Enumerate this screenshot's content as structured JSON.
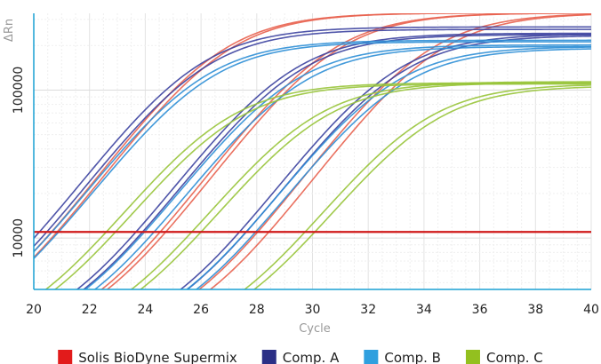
{
  "chart_data": {
    "type": "line",
    "xlabel": "Cycle",
    "ylabel": "ΔRn",
    "xlim": [
      20,
      40
    ],
    "x_ticks": [
      20,
      22,
      24,
      26,
      28,
      30,
      32,
      34,
      36,
      38,
      40
    ],
    "y_scale": "log",
    "ylim": [
      4500,
      330000
    ],
    "y_ticks": [
      10000,
      100000
    ],
    "y_tick_labels": [
      "10000",
      "100000"
    ],
    "grid": true,
    "legend_position": "bottom",
    "threshold": {
      "value": 11000,
      "color": "#d01919"
    },
    "curve_model": {
      "base": 2000
    },
    "series": [
      {
        "name": "Solis BioDyne Supermix",
        "color": "#e21b1b",
        "line_color": "#e8624f",
        "curves": [
          {
            "plateau": 330000,
            "midpoint": 26.4,
            "steepness": 0.62
          },
          {
            "plateau": 330000,
            "midpoint": 26.6,
            "steepness": 0.62
          },
          {
            "plateau": 330000,
            "midpoint": 30.3,
            "steepness": 0.62
          },
          {
            "plateau": 330000,
            "midpoint": 30.5,
            "steepness": 0.62
          },
          {
            "plateau": 330000,
            "midpoint": 33.8,
            "steepness": 0.62
          },
          {
            "plateau": 330000,
            "midpoint": 34.2,
            "steepness": 0.62
          }
        ]
      },
      {
        "name": "Comp. A",
        "color": "#2b2f86",
        "line_color": "#3c43a0",
        "curves": [
          {
            "plateau": 265000,
            "midpoint": 25.6,
            "steepness": 0.62
          },
          {
            "plateau": 255000,
            "midpoint": 25.8,
            "steepness": 0.62
          },
          {
            "plateau": 240000,
            "midpoint": 28.9,
            "steepness": 0.62
          },
          {
            "plateau": 235000,
            "midpoint": 29.1,
            "steepness": 0.62
          },
          {
            "plateau": 238000,
            "midpoint": 32.6,
            "steepness": 0.62
          },
          {
            "plateau": 232000,
            "midpoint": 32.8,
            "steepness": 0.62
          }
        ]
      },
      {
        "name": "Comp. B",
        "color": "#2fa0df",
        "line_color": "#2f8fd6",
        "curves": [
          {
            "plateau": 215000,
            "midpoint": 25.7,
            "steepness": 0.62
          },
          {
            "plateau": 210000,
            "midpoint": 25.9,
            "steepness": 0.62
          },
          {
            "plateau": 200000,
            "midpoint": 28.9,
            "steepness": 0.62
          },
          {
            "plateau": 195000,
            "midpoint": 29.2,
            "steepness": 0.62
          },
          {
            "plateau": 195000,
            "midpoint": 32.5,
            "steepness": 0.62
          },
          {
            "plateau": 190000,
            "midpoint": 32.8,
            "steepness": 0.62
          }
        ]
      },
      {
        "name": "Comp. C",
        "color": "#93c01f",
        "line_color": "#98c43a",
        "curves": [
          {
            "plateau": 110000,
            "midpoint": 26.5,
            "steepness": 0.62
          },
          {
            "plateau": 108000,
            "midpoint": 26.8,
            "steepness": 0.62
          },
          {
            "plateau": 112000,
            "midpoint": 29.6,
            "steepness": 0.62
          },
          {
            "plateau": 110000,
            "midpoint": 29.9,
            "steepness": 0.62
          },
          {
            "plateau": 108000,
            "midpoint": 33.6,
            "steepness": 0.62
          },
          {
            "plateau": 105000,
            "midpoint": 33.9,
            "steepness": 0.62
          }
        ]
      }
    ]
  }
}
